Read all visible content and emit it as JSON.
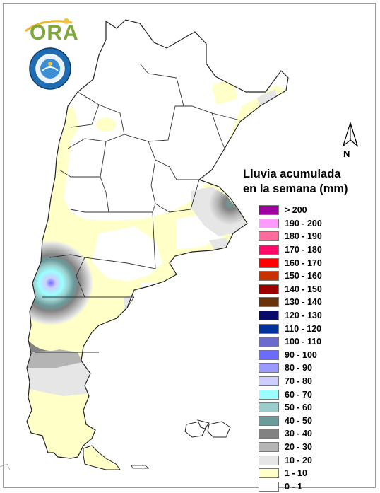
{
  "logo": {
    "ora_text": "ORA"
  },
  "north_arrow": {
    "letter": "N"
  },
  "legend": {
    "title_line1": "Lluvia acumulada",
    "title_line2": "en la semana (mm)",
    "items": [
      {
        "label": "> 200",
        "color": "#a000a0"
      },
      {
        "label": "190 - 200",
        "color": "#ff9bff"
      },
      {
        "label": "180 - 190",
        "color": "#ff6b9b"
      },
      {
        "label": "170 - 180",
        "color": "#ff0a6b"
      },
      {
        "label": "160 - 170",
        "color": "#ff0000"
      },
      {
        "label": "150 - 160",
        "color": "#c83200"
      },
      {
        "label": "140 - 150",
        "color": "#9b0000"
      },
      {
        "label": "130 - 140",
        "color": "#6b320a"
      },
      {
        "label": "120 - 130",
        "color": "#0a0a6b"
      },
      {
        "label": "110 - 120",
        "color": "#00329b"
      },
      {
        "label": "100 - 110",
        "color": "#6b6bcd"
      },
      {
        "label": "90 - 100",
        "color": "#6b6bff"
      },
      {
        "label": "80 - 90",
        "color": "#9b9bff"
      },
      {
        "label": "70 - 80",
        "color": "#cdcdff"
      },
      {
        "label": "60 - 70",
        "color": "#9bffff"
      },
      {
        "label": "50 - 60",
        "color": "#9bcdcd"
      },
      {
        "label": "40 - 50",
        "color": "#6b9b9b"
      },
      {
        "label": "30 - 40",
        "color": "#828282"
      },
      {
        "label": "20 - 30",
        "color": "#b4b4b4"
      },
      {
        "label": "10 - 20",
        "color": "#e6e6e6"
      },
      {
        "label": "1 - 10",
        "color": "#ffffc8"
      },
      {
        "label": "0 - 1",
        "color": "#ffffff"
      }
    ]
  }
}
